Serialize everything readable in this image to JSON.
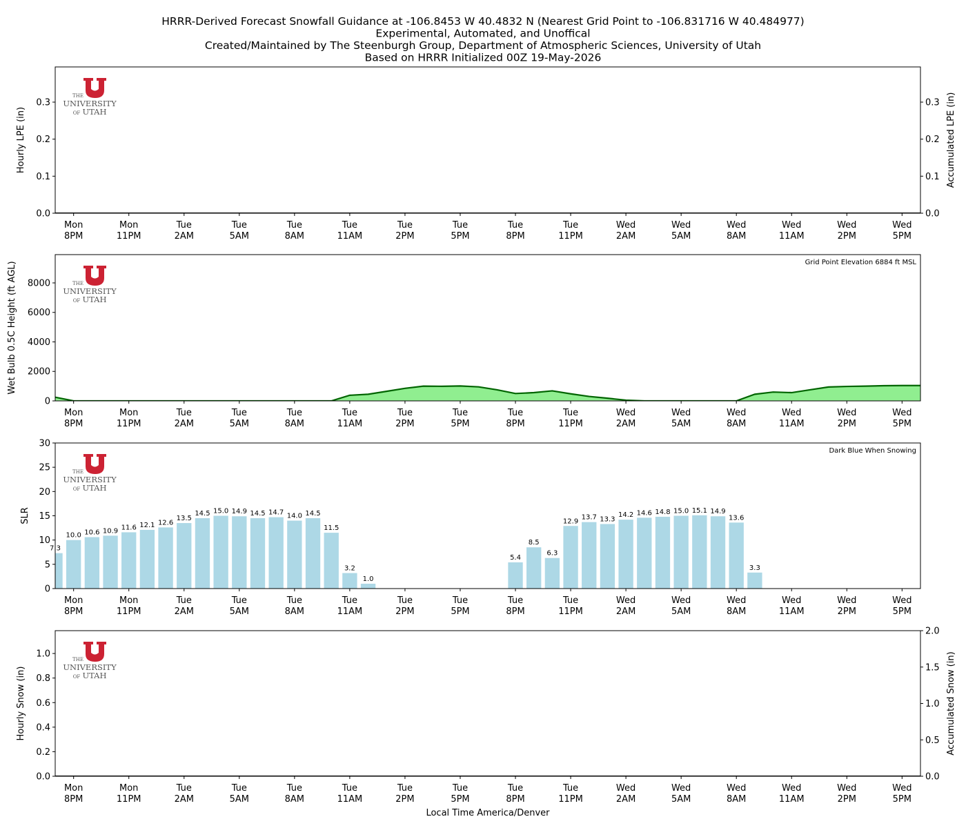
{
  "title": [
    "HRRR-Derived Forecast Snowfall Guidance at -106.8453 W 40.4832 N (Nearest Grid Point to -106.831716 W 40.484977)",
    "Experimental, Automated, and Unoffical",
    "Created/Maintained by The Steenburgh Group, Department of Atmospheric Sciences, University of Utah",
    "Based on HRRR Initialized 00Z 19-May-2026"
  ],
  "logo": [
    "THE",
    "UNIVERSITY",
    "OF",
    "UTAH"
  ],
  "chart_data": [
    {
      "type": "line",
      "ylabel": "Hourly LPE (in)",
      "y2label": "Accumulated LPE (in)",
      "color": "#000000",
      "x": [
        0,
        1,
        2,
        3,
        4,
        5,
        6,
        7,
        8,
        9,
        10,
        11,
        12,
        13,
        14,
        15,
        16,
        17,
        18,
        19,
        20,
        21,
        22,
        23,
        24,
        25,
        26,
        27,
        28,
        29,
        30,
        31,
        32,
        33,
        34,
        35,
        36,
        37,
        38,
        39,
        40,
        41,
        42,
        43,
        44,
        45,
        46,
        47
      ],
      "values": [
        0,
        0,
        0,
        0,
        0,
        0,
        0,
        0,
        0,
        0,
        0,
        0,
        0,
        0,
        0,
        0,
        0,
        0,
        0,
        0,
        0,
        0,
        0,
        0,
        0,
        0,
        0,
        0,
        0,
        0,
        0,
        0,
        0,
        0,
        0,
        0,
        0,
        0,
        0,
        0,
        0,
        0,
        0,
        0,
        0,
        0,
        0,
        0
      ],
      "xlim": [
        0,
        47
      ],
      "xticks": [
        {
          "value": 1,
          "label": "Mon\n8PM"
        },
        {
          "value": 4,
          "label": "Mon\n11PM"
        },
        {
          "value": 7,
          "label": "Tue\n2AM"
        },
        {
          "value": 10,
          "label": "Tue\n5AM"
        },
        {
          "value": 13,
          "label": "Tue\n8AM"
        },
        {
          "value": 16,
          "label": "Tue\n11AM"
        },
        {
          "value": 19,
          "label": "Tue\n2PM"
        },
        {
          "value": 22,
          "label": "Tue\n5PM"
        },
        {
          "value": 25,
          "label": "Tue\n8PM"
        },
        {
          "value": 28,
          "label": "Tue\n11PM"
        },
        {
          "value": 31,
          "label": "Wed\n2AM"
        },
        {
          "value": 34,
          "label": "Wed\n5AM"
        },
        {
          "value": 37,
          "label": "Wed\n8AM"
        },
        {
          "value": 40,
          "label": "Wed\n11AM"
        },
        {
          "value": 43,
          "label": "Wed\n2PM"
        },
        {
          "value": 46,
          "label": "Wed\n5PM"
        }
      ],
      "ylim": [
        0,
        0.395
      ],
      "yticks": [
        {
          "value": 0,
          "label": "0.0"
        },
        {
          "value": 0.1,
          "label": "0.1"
        },
        {
          "value": 0.2,
          "label": "0.2"
        },
        {
          "value": 0.3,
          "label": "0.3"
        }
      ],
      "y2lim": [
        0,
        0.395
      ],
      "y2ticks": [
        {
          "value": 0,
          "label": "0.0"
        },
        {
          "value": 0.1,
          "label": "0.1"
        },
        {
          "value": 0.2,
          "label": "0.2"
        },
        {
          "value": 0.3,
          "label": "0.3"
        }
      ]
    },
    {
      "type": "area",
      "ylabel": "Wet Bulb 0.5C Height (ft AGL)",
      "annotation": "Grid Point Elevation 6884 ft MSL",
      "color": "#90ee90",
      "line_color": "#006400",
      "x": [
        0,
        1,
        2,
        3,
        4,
        5,
        6,
        7,
        8,
        9,
        10,
        11,
        12,
        13,
        14,
        15,
        16,
        17,
        18,
        19,
        20,
        21,
        22,
        23,
        24,
        25,
        26,
        27,
        28,
        29,
        30,
        31,
        32,
        33,
        34,
        35,
        36,
        37,
        38,
        39,
        40,
        41,
        42,
        43,
        44,
        45,
        46,
        47
      ],
      "values": [
        250,
        0,
        0,
        0,
        0,
        0,
        0,
        0,
        0,
        0,
        0,
        0,
        0,
        0,
        0,
        0,
        380,
        450,
        650,
        850,
        1000,
        990,
        1010,
        950,
        750,
        500,
        560,
        680,
        480,
        300,
        180,
        50,
        0,
        0,
        0,
        0,
        0,
        0,
        450,
        600,
        560,
        750,
        940,
        980,
        1000,
        1030,
        1040,
        1040
      ],
      "xlim": [
        0,
        47
      ],
      "xticks": [
        {
          "value": 1,
          "label": "Mon\n8PM"
        },
        {
          "value": 4,
          "label": "Mon\n11PM"
        },
        {
          "value": 7,
          "label": "Tue\n2AM"
        },
        {
          "value": 10,
          "label": "Tue\n5AM"
        },
        {
          "value": 13,
          "label": "Tue\n8AM"
        },
        {
          "value": 16,
          "label": "Tue\n11AM"
        },
        {
          "value": 19,
          "label": "Tue\n2PM"
        },
        {
          "value": 22,
          "label": "Tue\n5PM"
        },
        {
          "value": 25,
          "label": "Tue\n8PM"
        },
        {
          "value": 28,
          "label": "Tue\n11PM"
        },
        {
          "value": 31,
          "label": "Wed\n2AM"
        },
        {
          "value": 34,
          "label": "Wed\n5AM"
        },
        {
          "value": 37,
          "label": "Wed\n8AM"
        },
        {
          "value": 40,
          "label": "Wed\n11AM"
        },
        {
          "value": 43,
          "label": "Wed\n2PM"
        },
        {
          "value": 46,
          "label": "Wed\n5PM"
        }
      ],
      "ylim": [
        0,
        9918
      ],
      "yticks": [
        0,
        2000,
        4000,
        6000,
        8000
      ]
    },
    {
      "type": "bar",
      "ylabel": "SLR",
      "annotation": "Dark Blue When Snowing",
      "color": "#add8e6",
      "x": [
        0,
        1,
        2,
        3,
        4,
        5,
        6,
        7,
        8,
        9,
        10,
        11,
        12,
        13,
        14,
        15,
        16,
        17,
        18,
        19,
        20,
        21,
        22,
        23,
        24,
        25,
        26,
        27,
        28,
        29,
        30,
        31,
        32,
        33,
        34,
        35,
        36,
        37,
        38,
        39,
        40,
        41,
        42,
        43,
        44,
        45,
        46,
        47
      ],
      "values": [
        7.3,
        10.0,
        10.6,
        10.9,
        11.6,
        12.1,
        12.6,
        13.5,
        14.5,
        15.0,
        14.9,
        14.5,
        14.7,
        14.0,
        14.5,
        11.5,
        3.2,
        1.0,
        null,
        null,
        null,
        null,
        null,
        null,
        null,
        5.4,
        8.5,
        6.3,
        12.9,
        13.7,
        13.3,
        14.2,
        14.6,
        14.8,
        15.0,
        15.1,
        14.9,
        13.6,
        3.3,
        null,
        null,
        null,
        null,
        null,
        null,
        null,
        null,
        null
      ],
      "value_labels": [
        "7.3",
        "10.0",
        "10.6",
        "10.9",
        "11.6",
        "12.1",
        "12.6",
        "13.5",
        "14.5",
        "15.0",
        "14.9",
        "14.5",
        "14.7",
        "14.0",
        "14.5",
        "11.5",
        "3.2",
        "1.0",
        null,
        null,
        null,
        null,
        null,
        null,
        null,
        "5.4",
        "8.5",
        "6.3",
        "12.9",
        "13.7",
        "13.3",
        "14.2",
        "14.6",
        "14.8",
        "15.0",
        "15.1",
        "14.9",
        "13.6",
        "3.3",
        null,
        null,
        null,
        null,
        null,
        null,
        null,
        null,
        null
      ],
      "xlim": [
        0,
        47
      ],
      "xticks": [
        {
          "value": 1,
          "label": "Mon\n8PM"
        },
        {
          "value": 4,
          "label": "Mon\n11PM"
        },
        {
          "value": 7,
          "label": "Tue\n2AM"
        },
        {
          "value": 10,
          "label": "Tue\n5AM"
        },
        {
          "value": 13,
          "label": "Tue\n8AM"
        },
        {
          "value": 16,
          "label": "Tue\n11AM"
        },
        {
          "value": 19,
          "label": "Tue\n2PM"
        },
        {
          "value": 22,
          "label": "Tue\n5PM"
        },
        {
          "value": 25,
          "label": "Tue\n8PM"
        },
        {
          "value": 28,
          "label": "Tue\n11PM"
        },
        {
          "value": 31,
          "label": "Wed\n2AM"
        },
        {
          "value": 34,
          "label": "Wed\n5AM"
        },
        {
          "value": 37,
          "label": "Wed\n8AM"
        },
        {
          "value": 40,
          "label": "Wed\n11AM"
        },
        {
          "value": 43,
          "label": "Wed\n2PM"
        },
        {
          "value": 46,
          "label": "Wed\n5PM"
        }
      ],
      "ylim": [
        0,
        30
      ],
      "yticks": [
        0,
        5,
        10,
        15,
        20,
        25,
        30
      ]
    },
    {
      "type": "line",
      "ylabel": "Hourly Snow (in)",
      "y2label": "Accumulated Snow (in)",
      "xlabel": "Local Time America/Denver",
      "color": "#000000",
      "x": [
        0,
        1,
        2,
        3,
        4,
        5,
        6,
        7,
        8,
        9,
        10,
        11,
        12,
        13,
        14,
        15,
        16,
        17,
        18,
        19,
        20,
        21,
        22,
        23,
        24,
        25,
        26,
        27,
        28,
        29,
        30,
        31,
        32,
        33,
        34,
        35,
        36,
        37,
        38,
        39,
        40,
        41,
        42,
        43,
        44,
        45,
        46,
        47
      ],
      "values": [
        0,
        0,
        0,
        0,
        0,
        0,
        0,
        0,
        0,
        0,
        0,
        0,
        0,
        0,
        0,
        0,
        0,
        0,
        0,
        0,
        0,
        0,
        0,
        0,
        0,
        0,
        0,
        0,
        0,
        0,
        0,
        0,
        0,
        0,
        0,
        0,
        0,
        0,
        0,
        0,
        0,
        0,
        0,
        0,
        0,
        0,
        0,
        0
      ],
      "xlim": [
        0,
        47
      ],
      "xticks": [
        {
          "value": 1,
          "label": "Mon\n8PM"
        },
        {
          "value": 4,
          "label": "Mon\n11PM"
        },
        {
          "value": 7,
          "label": "Tue\n2AM"
        },
        {
          "value": 10,
          "label": "Tue\n5AM"
        },
        {
          "value": 13,
          "label": "Tue\n8AM"
        },
        {
          "value": 16,
          "label": "Tue\n11AM"
        },
        {
          "value": 19,
          "label": "Tue\n2PM"
        },
        {
          "value": 22,
          "label": "Tue\n5PM"
        },
        {
          "value": 25,
          "label": "Tue\n8PM"
        },
        {
          "value": 28,
          "label": "Tue\n11PM"
        },
        {
          "value": 31,
          "label": "Wed\n2AM"
        },
        {
          "value": 34,
          "label": "Wed\n5AM"
        },
        {
          "value": 37,
          "label": "Wed\n8AM"
        },
        {
          "value": 40,
          "label": "Wed\n11AM"
        },
        {
          "value": 43,
          "label": "Wed\n2PM"
        },
        {
          "value": 46,
          "label": "Wed\n5PM"
        }
      ],
      "ylim": [
        0,
        1.186
      ],
      "yticks": [
        {
          "value": 0,
          "label": "0.0"
        },
        {
          "value": 0.2,
          "label": "0.2"
        },
        {
          "value": 0.4,
          "label": "0.4"
        },
        {
          "value": 0.6,
          "label": "0.6"
        },
        {
          "value": 0.8,
          "label": "0.8"
        },
        {
          "value": 1.0,
          "label": "1.0"
        }
      ],
      "y2lim": [
        0,
        2
      ],
      "y2ticks": [
        {
          "value": 0,
          "label": "0.0"
        },
        {
          "value": 0.5,
          "label": "0.5"
        },
        {
          "value": 1.0,
          "label": "1.0"
        },
        {
          "value": 1.5,
          "label": "1.5"
        },
        {
          "value": 2,
          "label": "2.0"
        }
      ]
    }
  ]
}
